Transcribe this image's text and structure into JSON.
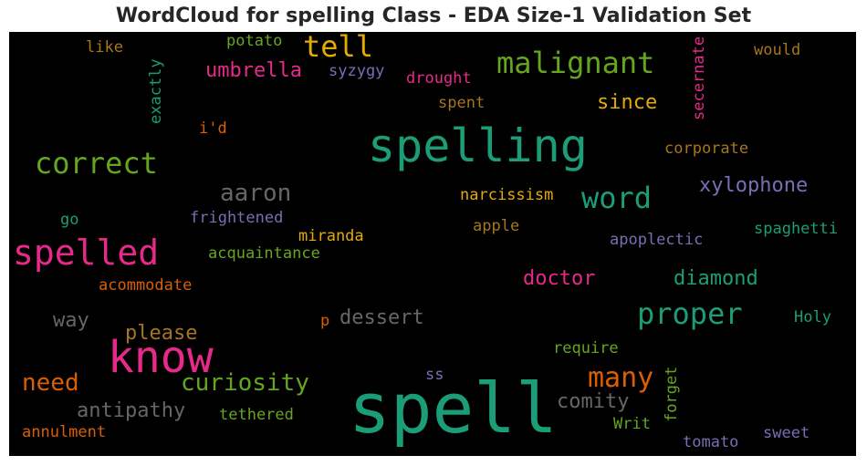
{
  "chart_data": {
    "type": "wordcloud",
    "title": "WordCloud for spelling Class - EDA Size-1 Validation Set",
    "words": [
      {
        "text": "spell",
        "color": "#1b9e77"
      },
      {
        "text": "spelling",
        "color": "#1b9e77"
      },
      {
        "text": "know",
        "color": "#e7298a"
      },
      {
        "text": "spelled",
        "color": "#e7298a"
      },
      {
        "text": "correct",
        "color": "#66a61e"
      },
      {
        "text": "malignant",
        "color": "#66a61e"
      },
      {
        "text": "tell",
        "color": "#e6ab02"
      },
      {
        "text": "word",
        "color": "#1b9e77"
      },
      {
        "text": "proper",
        "color": "#1b9e77"
      },
      {
        "text": "many",
        "color": "#d95f02"
      },
      {
        "text": "curiosity",
        "color": "#66a61e"
      },
      {
        "text": "need",
        "color": "#d95f02"
      },
      {
        "text": "aaron",
        "color": "#666666"
      },
      {
        "text": "antipathy",
        "color": "#666666"
      },
      {
        "text": "umbrella",
        "color": "#e7298a"
      },
      {
        "text": "xylophone",
        "color": "#7570b3"
      },
      {
        "text": "diamond",
        "color": "#1b9e77"
      },
      {
        "text": "doctor",
        "color": "#e7298a"
      },
      {
        "text": "dessert",
        "color": "#666666"
      },
      {
        "text": "comity",
        "color": "#666666"
      },
      {
        "text": "since",
        "color": "#e6ab02"
      },
      {
        "text": "please",
        "color": "#a6761d"
      },
      {
        "text": "way",
        "color": "#666666"
      },
      {
        "text": "syzygy",
        "color": "#7570b3"
      },
      {
        "text": "drought",
        "color": "#e7298a"
      },
      {
        "text": "narcissism",
        "color": "#e6ab02"
      },
      {
        "text": "frightened",
        "color": "#7570b3"
      },
      {
        "text": "miranda",
        "color": "#e6ab02"
      },
      {
        "text": "acquaintance",
        "color": "#66a61e"
      },
      {
        "text": "apoplectic",
        "color": "#7570b3"
      },
      {
        "text": "spaghetti",
        "color": "#1b9e77"
      },
      {
        "text": "corporate",
        "color": "#a6761d"
      },
      {
        "text": "spent",
        "color": "#a6761d"
      },
      {
        "text": "potato",
        "color": "#66a61e"
      },
      {
        "text": "like",
        "color": "#a6761d"
      },
      {
        "text": "would",
        "color": "#a6761d"
      },
      {
        "text": "i'd",
        "color": "#d95f02"
      },
      {
        "text": "go",
        "color": "#1b9e77"
      },
      {
        "text": "apple",
        "color": "#a6761d"
      },
      {
        "text": "acommodate",
        "color": "#d95f02"
      },
      {
        "text": "Holy",
        "color": "#1b9e77"
      },
      {
        "text": "require",
        "color": "#66a61e"
      },
      {
        "text": "tethered",
        "color": "#66a61e"
      },
      {
        "text": "annulment",
        "color": "#d95f02"
      },
      {
        "text": "Writ",
        "color": "#66a61e"
      },
      {
        "text": "tomato",
        "color": "#7570b3"
      },
      {
        "text": "sweet",
        "color": "#7570b3"
      },
      {
        "text": "ss",
        "color": "#7570b3"
      },
      {
        "text": "p",
        "color": "#d95f02"
      },
      {
        "text": "exactly",
        "color": "#1b9e77"
      },
      {
        "text": "secernate",
        "color": "#e7298a"
      },
      {
        "text": "forget",
        "color": "#66a61e"
      }
    ]
  }
}
